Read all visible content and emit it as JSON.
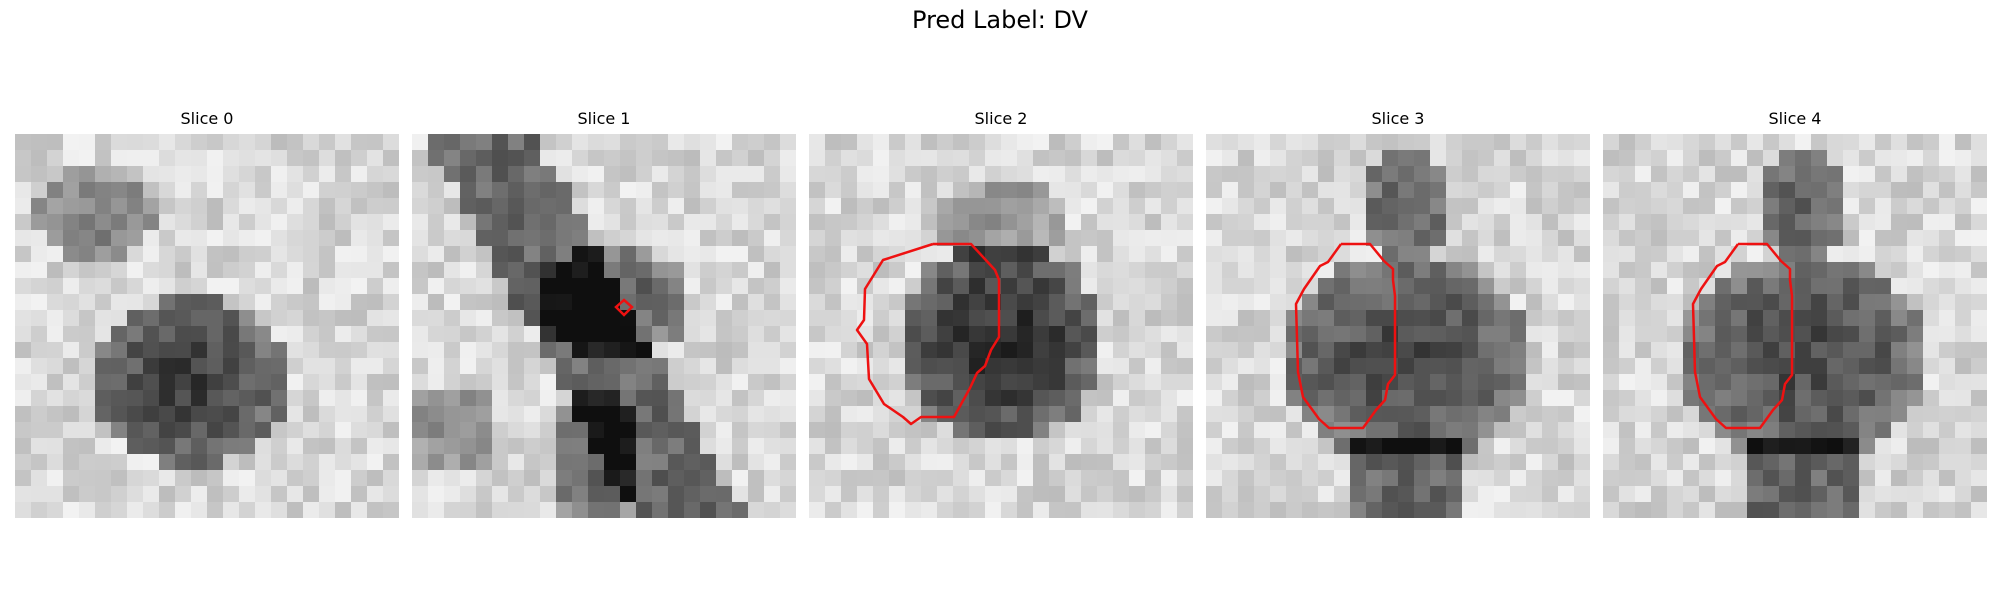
{
  "figure": {
    "title": "Pred Label: DV",
    "contour_color": "#ee1111"
  },
  "slices": [
    {
      "title": "Slice 0"
    },
    {
      "title": "Slice 1"
    },
    {
      "title": "Slice 2"
    },
    {
      "title": "Slice 3"
    },
    {
      "title": "Slice 4"
    }
  ]
}
